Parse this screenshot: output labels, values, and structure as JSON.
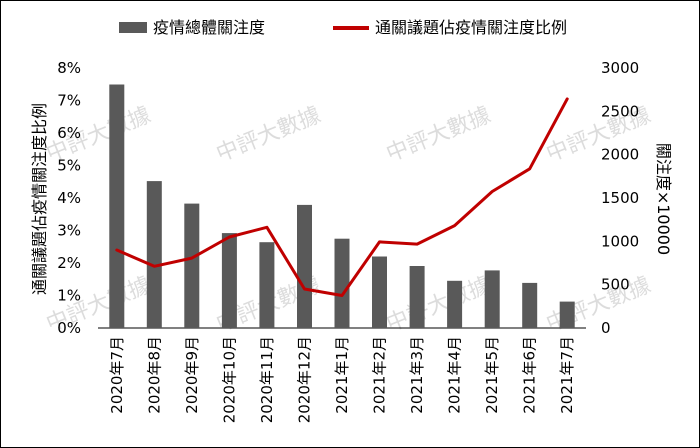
{
  "legend": {
    "bar_label": "疫情總體關注度",
    "line_label": "通關議題佔疫情關注度比例"
  },
  "watermark": "中評大數據",
  "chart_data": {
    "type": "bar+line",
    "categories": [
      "2020年7月",
      "2020年8月",
      "2020年9月",
      "2020年10月",
      "2020年11月",
      "2020年12月",
      "2021年1月",
      "2021年2月",
      "2021年3月",
      "2021年4月",
      "2021年5月",
      "2021年6月",
      "2021年7月"
    ],
    "series": [
      {
        "name": "疫情總體關注度",
        "type": "bar",
        "axis": "right",
        "color": "#595959",
        "values": [
          2810,
          1695,
          1435,
          1095,
          990,
          1420,
          1030,
          825,
          715,
          545,
          665,
          520,
          305
        ]
      },
      {
        "name": "通關議題佔疫情關注度比例",
        "type": "line",
        "axis": "left",
        "color": "#c00000",
        "values": [
          0.024,
          0.019,
          0.0215,
          0.028,
          0.031,
          0.012,
          0.01,
          0.0265,
          0.0258,
          0.0315,
          0.042,
          0.049,
          0.0705
        ]
      }
    ],
    "y_left": {
      "label": "通關議題佔疫情關注度比例",
      "ticks": [
        "0%",
        "1%",
        "2%",
        "3%",
        "4%",
        "5%",
        "6%",
        "7%",
        "8%"
      ],
      "ylim": [
        0,
        0.08
      ]
    },
    "y_right": {
      "label": "關注度×10000",
      "ticks": [
        "0",
        "500",
        "1000",
        "1500",
        "2000",
        "2500",
        "3000"
      ],
      "ylim": [
        0,
        3000
      ]
    },
    "grid": false,
    "legend_position": "top"
  }
}
